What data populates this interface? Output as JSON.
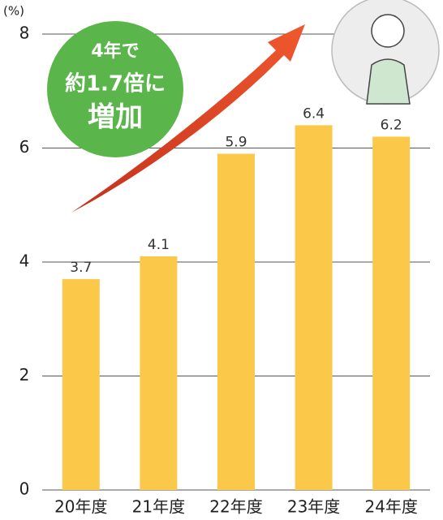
{
  "chart_data": {
    "type": "bar",
    "y_unit": "(%)",
    "categories": [
      "20年度",
      "21年度",
      "22年度",
      "23年度",
      "24年度"
    ],
    "values": [
      3.7,
      4.1,
      5.9,
      6.4,
      6.2
    ],
    "color": "#fcc84a",
    "ylim": [
      0,
      8
    ],
    "yticks": [
      0,
      2,
      4,
      6,
      8
    ],
    "grid": true,
    "annotation": [
      "4年で",
      "約1.7倍に",
      "増加"
    ]
  }
}
